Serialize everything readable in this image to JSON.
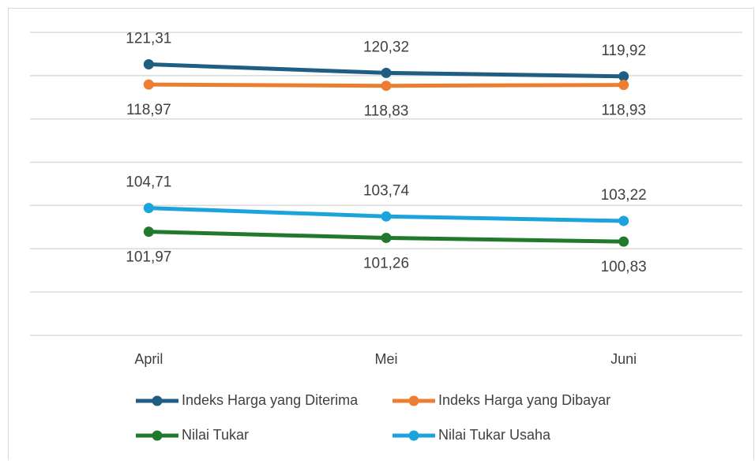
{
  "chart_data": {
    "type": "line",
    "categories": [
      "April",
      "Mei",
      "Juni"
    ],
    "ylim": [
      90,
      125
    ],
    "yticks": [
      90,
      95,
      100,
      105,
      110,
      115,
      120,
      125
    ],
    "grid": true,
    "ytick_labels": false,
    "legend": "bottom",
    "series": [
      {
        "name": "Indeks Harga yang Diterima",
        "color": "#1f5e82",
        "values": [
          121.31,
          120.32,
          119.92
        ],
        "value_labels": [
          "121,31",
          "120,32",
          "119,92"
        ],
        "label_position": "above"
      },
      {
        "name": "Indeks Harga yang Dibayar",
        "color": "#ed7d31",
        "values": [
          118.97,
          118.83,
          118.93
        ],
        "value_labels": [
          "118,97",
          "118,83",
          "118,93"
        ],
        "label_position": "below"
      },
      {
        "name": "Nilai Tukar",
        "color": "#217a2c",
        "values": [
          101.97,
          101.26,
          100.83
        ],
        "value_labels": [
          "101,97",
          "101,26",
          "100,83"
        ],
        "label_position": "below"
      },
      {
        "name": "Nilai Tukar Usaha",
        "color": "#1ba4dc",
        "values": [
          104.71,
          103.74,
          103.22
        ],
        "value_labels": [
          "104,71",
          "103,74",
          "103,22"
        ],
        "label_position": "above"
      }
    ]
  }
}
